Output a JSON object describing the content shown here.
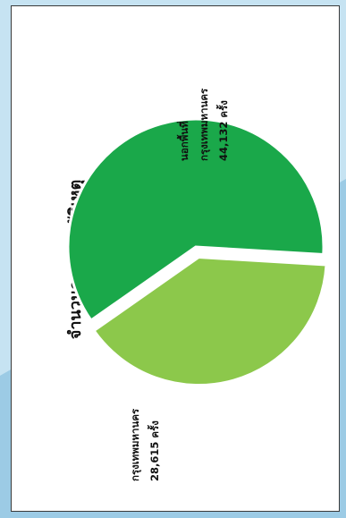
{
  "chart_data": {
    "type": "pie",
    "title": "จำนวนการเกิดอุบัติเหตุ",
    "series": [
      {
        "name": "นอกพื้นที่ กรุงเทพมหานคร",
        "value": 44132,
        "label_lines": [
          "นอกพื้นที่",
          "กรุงเทพมหานคร",
          "44,132 ครั้ง"
        ],
        "color": "#1aa84a",
        "exploded": false
      },
      {
        "name": "กรุงเทพมหานคร",
        "value": 28615,
        "label_lines": [
          "กรุงเทพมหานคร",
          "28,615 ครั้ง"
        ],
        "color": "#8cc84b",
        "exploded": true
      }
    ]
  }
}
